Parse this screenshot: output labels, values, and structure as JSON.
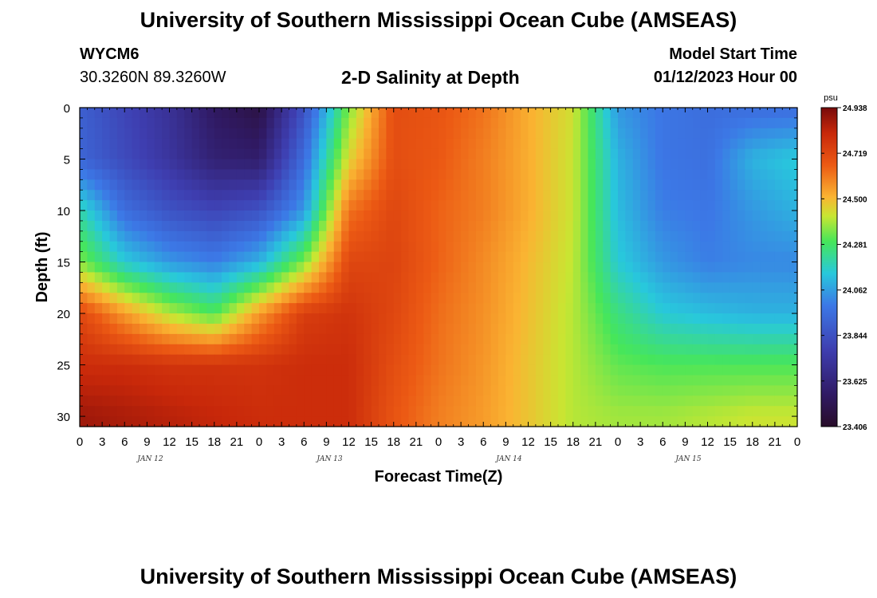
{
  "header": {
    "title": "University of Southern Mississippi Ocean Cube (AMSEAS)",
    "station": "WYCM6",
    "coords": "30.3260N  89.3260W",
    "chart_title": "2-D Salinity at Depth",
    "model_label": "Model Start Time",
    "model_date": "01/12/2023 Hour 00"
  },
  "footer": {
    "title": "University of Southern Mississippi Ocean Cube (AMSEAS)"
  },
  "chart_data": {
    "type": "heatmap",
    "title": "2-D Salinity at Depth",
    "xlabel": "Forecast Time(Z)",
    "ylabel": "Depth (ft)",
    "x_range_hours": [
      0,
      96
    ],
    "y_range_ft": [
      0,
      31
    ],
    "x_tick_labels": [
      "0",
      "3",
      "6",
      "9",
      "12",
      "15",
      "18",
      "21",
      "0",
      "3",
      "6",
      "9",
      "12",
      "15",
      "18",
      "21",
      "0",
      "3",
      "6",
      "9",
      "12",
      "15",
      "18",
      "21",
      "0",
      "3",
      "6",
      "9",
      "12",
      "15",
      "18",
      "21",
      "0"
    ],
    "day_labels": [
      "JAN 12",
      "JAN 13",
      "JAN 14",
      "JAN 15"
    ],
    "y_ticks": [
      0,
      5,
      10,
      15,
      20,
      25,
      30
    ],
    "colorbar": {
      "unit": "psu",
      "min": 23.406,
      "max": 24.938,
      "tick_labels": [
        "24.938",
        "24.719",
        "24.500",
        "24.281",
        "24.062",
        "23.844",
        "23.625",
        "23.406"
      ]
    },
    "depth_levels_ft": [
      0,
      5,
      10,
      15,
      20,
      25,
      30
    ],
    "hours": [
      0,
      6,
      12,
      18,
      24,
      30,
      36,
      42,
      48,
      54,
      60,
      66,
      72,
      78,
      84,
      90,
      96
    ],
    "salinity_psu": [
      [
        23.9,
        23.8,
        23.7,
        23.55,
        23.48,
        23.85,
        24.35,
        24.7,
        24.68,
        24.62,
        24.52,
        24.43,
        24.05,
        23.98,
        23.95,
        23.95,
        23.95
      ],
      [
        23.92,
        23.82,
        23.72,
        23.6,
        23.58,
        23.95,
        24.45,
        24.7,
        24.67,
        24.6,
        24.52,
        24.42,
        24.1,
        23.98,
        23.96,
        24.1,
        24.15
      ],
      [
        24.2,
        23.95,
        23.85,
        23.8,
        23.85,
        24.05,
        24.62,
        24.72,
        24.65,
        24.6,
        24.52,
        24.42,
        24.12,
        24.0,
        23.98,
        24.05,
        24.1
      ],
      [
        24.35,
        24.15,
        24.05,
        24.0,
        24.1,
        24.35,
        24.72,
        24.73,
        24.65,
        24.58,
        24.5,
        24.41,
        24.15,
        24.05,
        24.0,
        24.02,
        24.02
      ],
      [
        24.72,
        24.55,
        24.4,
        24.3,
        24.55,
        24.75,
        24.78,
        24.72,
        24.63,
        24.57,
        24.49,
        24.4,
        24.25,
        24.15,
        24.12,
        24.1,
        24.1
      ],
      [
        24.8,
        24.8,
        24.78,
        24.78,
        24.78,
        24.8,
        24.8,
        24.7,
        24.62,
        24.56,
        24.48,
        24.4,
        24.32,
        24.3,
        24.3,
        24.3,
        24.3
      ],
      [
        24.88,
        24.86,
        24.84,
        24.82,
        24.8,
        24.8,
        24.8,
        24.68,
        24.6,
        24.55,
        24.48,
        24.4,
        24.38,
        24.38,
        24.4,
        24.42,
        24.42
      ]
    ]
  }
}
